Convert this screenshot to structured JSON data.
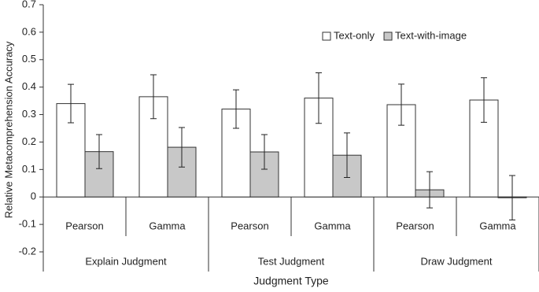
{
  "chart_data": {
    "type": "bar",
    "ylabel": "Relative Metacomprehension Accuracy",
    "xlabel": "Judgment Type",
    "categories": [
      "Pearson",
      "Gamma",
      "Pearson",
      "Gamma",
      "Pearson",
      "Gamma"
    ],
    "groups": [
      "Explain Judgment",
      "Test Judgment",
      "Draw Judgment"
    ],
    "series": [
      {
        "name": "Text-only",
        "color": "#ffffff",
        "values": [
          0.34,
          0.365,
          0.32,
          0.36,
          0.336,
          0.353
        ],
        "errors": [
          0.07,
          0.08,
          0.07,
          0.092,
          0.075,
          0.081
        ]
      },
      {
        "name": "Text-with-image",
        "color": "#c8c8c8",
        "values": [
          0.165,
          0.181,
          0.164,
          0.152,
          0.026,
          -0.003
        ],
        "errors": [
          0.062,
          0.072,
          0.063,
          0.081,
          0.066,
          0.081
        ]
      }
    ],
    "ylim": [
      -0.2,
      0.7
    ],
    "yticks": [
      -0.2,
      -0.1,
      0,
      0.1,
      0.2,
      0.3,
      0.4,
      0.5,
      0.6,
      0.7
    ],
    "grid": false,
    "legend": "top-right"
  }
}
